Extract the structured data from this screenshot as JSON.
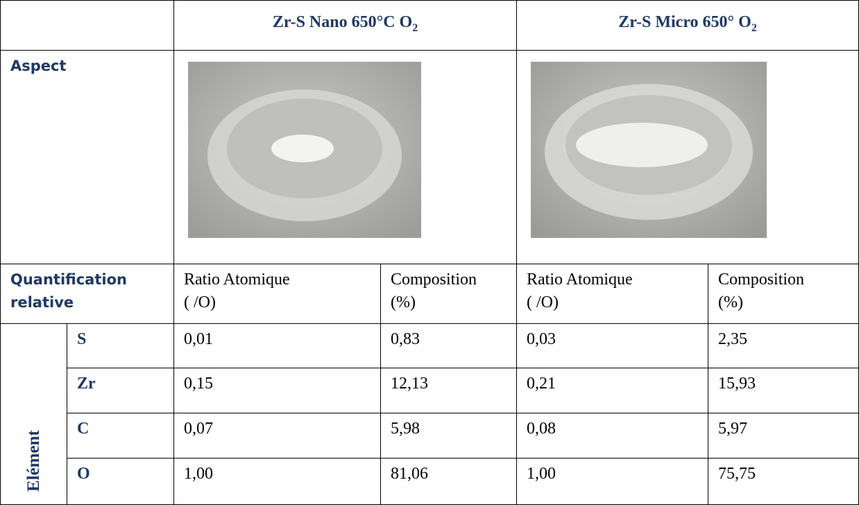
{
  "table": {
    "header": [
      {
        "text": "Zr-S Nano 650°C O",
        "subscript": "2"
      },
      {
        "text": "Zr-S Micro 650° O",
        "subscript": "2"
      }
    ],
    "aspect_label": "Aspect",
    "quant_label": "Quantification relative",
    "quant_columns": [
      [
        "Ratio Atomique",
        "( /O)"
      ],
      [
        "Composition",
        "(%)"
      ],
      [
        "Ratio Atomique",
        "( /O)"
      ],
      [
        "Composition",
        "(%)"
      ]
    ],
    "group_label": "Elément",
    "rows": [
      {
        "element": "S",
        "values": [
          "0,01",
          "0,83",
          "0,03",
          "2,35"
        ]
      },
      {
        "element": "Zr",
        "values": [
          "0,15",
          "12,13",
          "0,21",
          "15,93"
        ]
      },
      {
        "element": "C",
        "values": [
          "0,07",
          "5,98",
          "0,08",
          "5,97"
        ]
      },
      {
        "element": "O",
        "values": [
          "1,00",
          "81,06",
          "1,00",
          "75,75"
        ]
      }
    ]
  }
}
